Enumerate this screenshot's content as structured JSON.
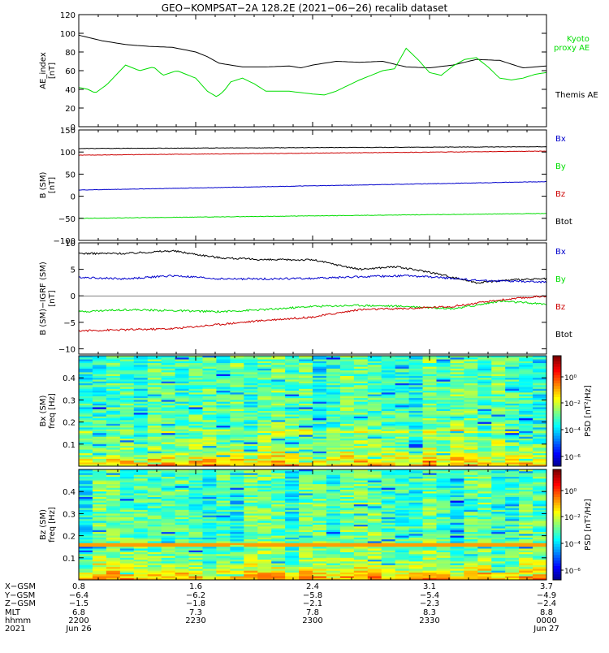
{
  "title": "GEO−KOMPSAT−2A 128.2E (2021−06−26) recalib dataset",
  "colors": {
    "black": "#000000",
    "red": "#cc0000",
    "green": "#00dd00",
    "blue": "#0000cc"
  },
  "chart_data": [
    {
      "type": "line",
      "panel": "ae",
      "ylabel": "AE_index [nT]",
      "ylim": [
        0,
        120
      ],
      "yticks": [
        0,
        20,
        40,
        60,
        80,
        100,
        120
      ],
      "xlim": [
        0,
        2
      ],
      "legend": [
        {
          "name": "Kyoto proxy AE",
          "color": "green"
        },
        {
          "name": "Themis AE",
          "color": "black"
        }
      ],
      "series": [
        {
          "name": "Themis AE",
          "color": "black",
          "x": [
            0,
            0.05,
            0.1,
            0.2,
            0.3,
            0.4,
            0.5,
            0.55,
            0.6,
            0.7,
            0.8,
            0.9,
            0.95,
            1.0,
            1.1,
            1.2,
            1.3,
            1.4,
            1.5,
            1.6,
            1.7,
            1.8,
            1.9,
            2.0
          ],
          "y": [
            98,
            95,
            92,
            88,
            86,
            85,
            80,
            75,
            68,
            64,
            64,
            65,
            63,
            66,
            70,
            69,
            70,
            64,
            63,
            66,
            72,
            71,
            63,
            65
          ]
        },
        {
          "name": "Kyoto proxy AE",
          "color": "green",
          "x": [
            0,
            0.04,
            0.07,
            0.12,
            0.2,
            0.26,
            0.32,
            0.36,
            0.42,
            0.5,
            0.55,
            0.59,
            0.62,
            0.65,
            0.7,
            0.75,
            0.8,
            0.9,
            1.0,
            1.05,
            1.1,
            1.2,
            1.3,
            1.35,
            1.4,
            1.45,
            1.5,
            1.55,
            1.6,
            1.65,
            1.7,
            1.75,
            1.8,
            1.85,
            1.9,
            1.95,
            2.0
          ],
          "y": [
            42,
            40,
            36,
            45,
            66,
            60,
            64,
            55,
            60,
            52,
            38,
            32,
            38,
            48,
            52,
            46,
            38,
            38,
            35,
            34,
            38,
            50,
            60,
            62,
            84,
            72,
            58,
            55,
            65,
            72,
            74,
            64,
            52,
            50,
            52,
            56,
            58
          ]
        }
      ]
    },
    {
      "type": "line",
      "panel": "b",
      "ylabel": "B (SM) [nT]",
      "ylim": [
        -100,
        150
      ],
      "yticks": [
        -100,
        -50,
        0,
        50,
        100,
        150
      ],
      "xlim": [
        0,
        2
      ],
      "legend": [
        {
          "name": "Bx",
          "color": "blue"
        },
        {
          "name": "By",
          "color": "green"
        },
        {
          "name": "Bz",
          "color": "red"
        },
        {
          "name": "Btot",
          "color": "black"
        }
      ],
      "series": [
        {
          "name": "Btot",
          "color": "black",
          "x": [
            0,
            2
          ],
          "y": [
            108,
            112
          ]
        },
        {
          "name": "Bz",
          "color": "red",
          "x": [
            0,
            2
          ],
          "y": [
            93,
            102
          ]
        },
        {
          "name": "Bx",
          "color": "blue",
          "x": [
            0,
            2
          ],
          "y": [
            14,
            33
          ]
        },
        {
          "name": "By",
          "color": "green",
          "x": [
            0,
            2
          ],
          "y": [
            -50,
            -39
          ]
        }
      ]
    },
    {
      "type": "line",
      "panel": "db",
      "ylabel": "B (SM)−IGRF (SM) [nT]",
      "ylim": [
        -11,
        10
      ],
      "yticks": [
        -10,
        -5,
        0,
        5,
        10
      ],
      "xlim": [
        0,
        2
      ],
      "legend": [
        {
          "name": "Bx",
          "color": "blue"
        },
        {
          "name": "By",
          "color": "green"
        },
        {
          "name": "Bz",
          "color": "red"
        },
        {
          "name": "Btot",
          "color": "black"
        }
      ],
      "series": [
        {
          "name": "Btot",
          "color": "black",
          "x": [
            0,
            0.2,
            0.4,
            0.6,
            0.8,
            1.0,
            1.2,
            1.35,
            1.5,
            1.6,
            1.7,
            1.85,
            2.0
          ],
          "y": [
            8,
            8,
            8.5,
            7.2,
            6.8,
            6.8,
            5.0,
            5.5,
            4.5,
            3.5,
            2.5,
            3.0,
            3.2
          ]
        },
        {
          "name": "Bx",
          "color": "blue",
          "x": [
            0,
            0.2,
            0.4,
            0.6,
            0.8,
            1.0,
            1.2,
            1.4,
            1.6,
            1.7,
            1.8,
            2.0
          ],
          "y": [
            3.5,
            3.2,
            3.8,
            3.2,
            3.2,
            3.3,
            3.6,
            3.8,
            3.3,
            2.9,
            2.8,
            2.6
          ]
        },
        {
          "name": "By",
          "color": "green",
          "x": [
            0,
            0.2,
            0.4,
            0.6,
            0.8,
            1.0,
            1.2,
            1.4,
            1.6,
            1.7,
            1.8,
            2.0
          ],
          "y": [
            -3,
            -2.6,
            -2.8,
            -3.0,
            -2.6,
            -2.0,
            -1.8,
            -2.0,
            -2.4,
            -1.8,
            -1.0,
            -1.6
          ]
        },
        {
          "name": "Bz",
          "color": "red",
          "x": [
            0,
            0.2,
            0.4,
            0.6,
            0.8,
            1.0,
            1.2,
            1.4,
            1.6,
            1.8,
            2.0
          ],
          "y": [
            -6.6,
            -6.4,
            -6.2,
            -5.4,
            -4.6,
            -4.0,
            -2.6,
            -2.4,
            -2.0,
            -0.8,
            0.0
          ]
        }
      ]
    },
    {
      "type": "heatmap",
      "panel": "bx-spec",
      "ylabel": "Bx (SM) freq [Hz]",
      "yticks": [
        0.1,
        0.2,
        0.3,
        0.4
      ],
      "ylim": [
        0,
        0.5
      ],
      "colorbar_label": "PSD [nT²/Hz]",
      "colorbar_ticks": [
        "10⁰",
        "10⁻²",
        "10⁻⁴",
        "10⁻⁶"
      ]
    },
    {
      "type": "heatmap",
      "panel": "bz-spec",
      "ylabel": "Bz (SM) freq [Hz]",
      "yticks": [
        0.1,
        0.2,
        0.3,
        0.4
      ],
      "ylim": [
        0,
        0.5
      ],
      "colorbar_label": "PSD [nT²/Hz]",
      "colorbar_ticks": [
        "10⁰",
        "10⁻²",
        "10⁻⁴",
        "10⁻⁶"
      ]
    }
  ],
  "x_axis": {
    "row_labels": [
      "X−GSM",
      "Y−GSM",
      "Z−GSM",
      "MLT",
      "hhmm",
      "2021"
    ],
    "columns": [
      {
        "values": [
          "0.8",
          "−6.4",
          "−1.5",
          "6.8",
          "2200",
          "Jun 26"
        ]
      },
      {
        "values": [
          "1.6",
          "−6.2",
          "−1.8",
          "7.3",
          "2230",
          ""
        ]
      },
      {
        "values": [
          "2.4",
          "−5.8",
          "−2.1",
          "7.8",
          "2300",
          ""
        ]
      },
      {
        "values": [
          "3.1",
          "−5.4",
          "−2.3",
          "8.3",
          "2330",
          ""
        ]
      },
      {
        "values": [
          "3.7",
          "−4.9",
          "−2.4",
          "8.8",
          "0000",
          "Jun 27"
        ]
      }
    ]
  }
}
